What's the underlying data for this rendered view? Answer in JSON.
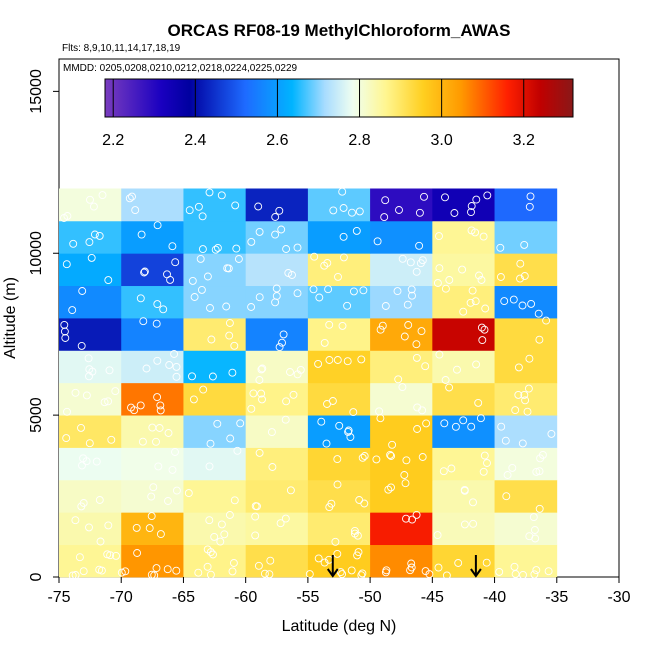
{
  "chart_data": {
    "type": "heatmap",
    "title": "ORCAS RF08-19 MethylChloroform_AWAS",
    "flights_label": "Flts: 8,9,10,11,14,17,18,19",
    "mmdd_label": "MMDD: 0205,0208,0210,0212,0218,0224,0225,0229",
    "xlabel": "Latitude (deg N)",
    "ylabel": "Altitude (m)",
    "xlim": [
      -75,
      -30
    ],
    "ylim": [
      0,
      16000
    ],
    "x_ticks": [
      -75,
      -70,
      -65,
      -60,
      -55,
      -50,
      -45,
      -40,
      -35,
      -30
    ],
    "x_tick_labels": [
      "-75",
      "-70",
      "-65",
      "-60",
      "-55",
      "-50",
      "-45",
      "-40",
      "-35",
      "-30"
    ],
    "y_ticks": [
      0,
      5000,
      10000,
      15000
    ],
    "y_tick_labels": [
      "0",
      "5000",
      "10000",
      "15000"
    ],
    "lat_bins": [
      -75,
      -70,
      -65,
      -60,
      -55,
      -50,
      -45,
      -40,
      -35
    ],
    "alt_bin_size": 1000,
    "alt_bins_bottom": [
      0,
      1000,
      2000,
      3000,
      4000,
      5000,
      6000,
      7000,
      8000,
      9000,
      10000,
      11000
    ],
    "values": [
      [
        2.86,
        3.05,
        2.87,
        2.92,
        2.96,
        3.06,
        2.94,
        2.86
      ],
      [
        2.84,
        3.0,
        2.84,
        2.85,
        2.89,
        3.17,
        2.83,
        2.81
      ],
      [
        2.82,
        2.81,
        2.86,
        2.89,
        2.92,
        2.96,
        2.84,
        2.92
      ],
      [
        2.78,
        2.79,
        2.77,
        2.88,
        2.94,
        2.96,
        2.86,
        2.8
      ],
      [
        2.9,
        2.84,
        2.7,
        2.82,
        2.6,
        2.96,
        2.58,
        2.72
      ],
      [
        2.81,
        3.08,
        2.93,
        2.87,
        2.93,
        2.81,
        2.92,
        2.89
      ],
      [
        2.77,
        2.75,
        2.64,
        2.82,
        2.95,
        2.88,
        2.84,
        2.93
      ],
      [
        2.42,
        2.56,
        2.89,
        2.56,
        2.87,
        3.02,
        3.23,
        2.93
      ],
      [
        2.57,
        2.66,
        2.7,
        2.7,
        2.68,
        2.71,
        2.88,
        2.57
      ],
      [
        2.62,
        2.47,
        2.7,
        2.73,
        2.88,
        2.75,
        2.85,
        2.92
      ],
      [
        2.66,
        2.6,
        2.66,
        2.69,
        2.6,
        2.58,
        2.86,
        2.69
      ],
      [
        2.8,
        2.72,
        2.66,
        2.43,
        2.68,
        2.29,
        2.34,
        2.52
      ]
    ],
    "colorbar_range": [
      2.18,
      3.32
    ],
    "colorbar_ticks": [
      2.2,
      2.4,
      2.6,
      2.8,
      3.0,
      3.2
    ],
    "colorbar_tick_labels": [
      "2.2",
      "2.4",
      "2.6",
      "2.8",
      "3.0",
      "3.2"
    ],
    "arrows_latitude": [
      -53,
      -41.5
    ],
    "grid": false
  }
}
